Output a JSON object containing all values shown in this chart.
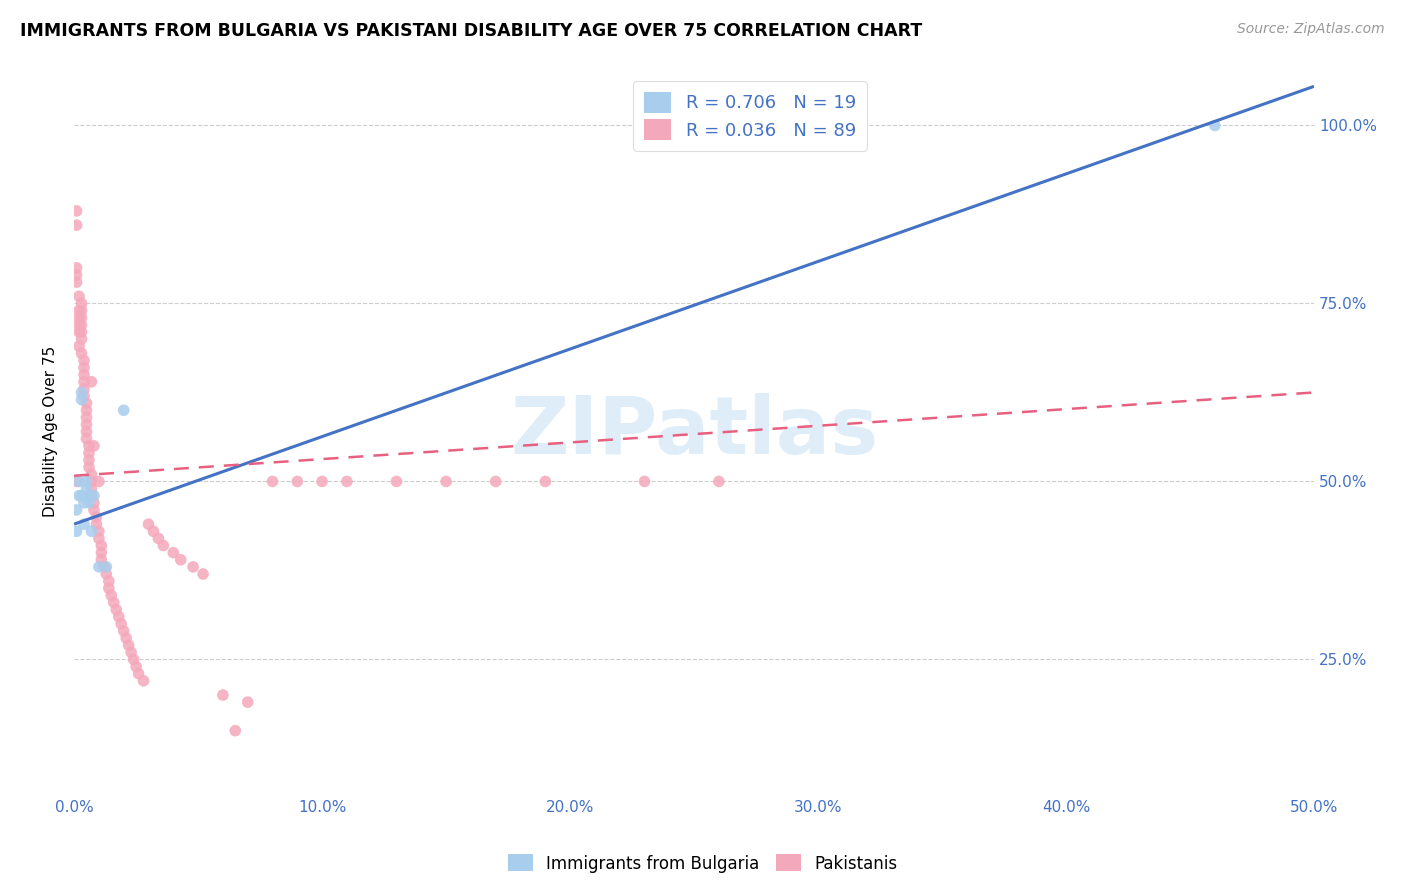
{
  "title": "IMMIGRANTS FROM BULGARIA VS PAKISTANI DISABILITY AGE OVER 75 CORRELATION CHART",
  "source": "Source: ZipAtlas.com",
  "ylabel": "Disability Age Over 75",
  "x_tick_vals": [
    0.0,
    0.1,
    0.2,
    0.3,
    0.4,
    0.5
  ],
  "x_tick_labels": [
    "0.0%",
    "10.0%",
    "20.0%",
    "30.0%",
    "40.0%",
    "50.0%"
  ],
  "y_tick_vals": [
    0.25,
    0.5,
    0.75,
    1.0
  ],
  "y_tick_labels": [
    "25.0%",
    "50.0%",
    "75.0%",
    "100.0%"
  ],
  "xlim": [
    0.0,
    0.5
  ],
  "ylim": [
    0.06,
    1.08
  ],
  "color_bulgaria": "#A8CDED",
  "color_pakistan": "#F4A8BB",
  "color_line_bulgaria": "#4472C4",
  "color_line_pakistan": "#E86080",
  "color_axis_text": "#4472C4",
  "color_grid": "#C8C8C8",
  "bul_line_x": [
    0.0,
    0.5
  ],
  "bul_line_y": [
    0.44,
    1.055
  ],
  "pak_line_x": [
    0.0,
    0.5
  ],
  "pak_line_y": [
    0.508,
    0.625
  ],
  "legend_R1": "R = 0.706",
  "legend_N1": "N = 19",
  "legend_R2": "R = 0.036",
  "legend_N2": "N = 89",
  "legend_label1": "Immigrants from Bulgaria",
  "legend_label2": "Pakistanis",
  "watermark": "ZIPatlas",
  "bul_x": [
    0.001,
    0.001,
    0.002,
    0.002,
    0.003,
    0.003,
    0.003,
    0.004,
    0.004,
    0.005,
    0.005,
    0.006,
    0.006,
    0.007,
    0.008,
    0.01,
    0.013,
    0.02,
    0.46
  ],
  "bul_y": [
    0.46,
    0.43,
    0.5,
    0.48,
    0.625,
    0.615,
    0.48,
    0.47,
    0.44,
    0.5,
    0.49,
    0.48,
    0.47,
    0.43,
    0.48,
    0.38,
    0.38,
    0.6,
    1.0
  ],
  "pak_x": [
    0.001,
    0.001,
    0.001,
    0.001,
    0.001,
    0.001,
    0.002,
    0.002,
    0.002,
    0.002,
    0.002,
    0.002,
    0.003,
    0.003,
    0.003,
    0.003,
    0.003,
    0.003,
    0.003,
    0.004,
    0.004,
    0.004,
    0.004,
    0.004,
    0.004,
    0.005,
    0.005,
    0.005,
    0.005,
    0.005,
    0.005,
    0.006,
    0.006,
    0.006,
    0.006,
    0.007,
    0.007,
    0.007,
    0.007,
    0.007,
    0.008,
    0.008,
    0.008,
    0.009,
    0.009,
    0.01,
    0.01,
    0.01,
    0.011,
    0.011,
    0.011,
    0.012,
    0.013,
    0.014,
    0.014,
    0.015,
    0.016,
    0.017,
    0.018,
    0.019,
    0.02,
    0.021,
    0.022,
    0.023,
    0.024,
    0.025,
    0.026,
    0.028,
    0.03,
    0.032,
    0.034,
    0.036,
    0.04,
    0.043,
    0.048,
    0.052,
    0.06,
    0.065,
    0.07,
    0.08,
    0.09,
    0.1,
    0.11,
    0.13,
    0.15,
    0.17,
    0.19,
    0.23,
    0.26
  ],
  "pak_y": [
    0.86,
    0.79,
    0.5,
    0.8,
    0.78,
    0.88,
    0.76,
    0.74,
    0.73,
    0.72,
    0.71,
    0.69,
    0.75,
    0.74,
    0.73,
    0.72,
    0.71,
    0.7,
    0.68,
    0.67,
    0.66,
    0.65,
    0.64,
    0.63,
    0.62,
    0.61,
    0.6,
    0.59,
    0.58,
    0.57,
    0.56,
    0.55,
    0.54,
    0.53,
    0.52,
    0.51,
    0.64,
    0.5,
    0.49,
    0.48,
    0.47,
    0.55,
    0.46,
    0.45,
    0.44,
    0.5,
    0.43,
    0.42,
    0.41,
    0.4,
    0.39,
    0.38,
    0.37,
    0.36,
    0.35,
    0.34,
    0.33,
    0.32,
    0.31,
    0.3,
    0.29,
    0.28,
    0.27,
    0.26,
    0.25,
    0.24,
    0.23,
    0.22,
    0.44,
    0.43,
    0.42,
    0.41,
    0.4,
    0.39,
    0.38,
    0.37,
    0.2,
    0.15,
    0.19,
    0.5,
    0.5,
    0.5,
    0.5,
    0.5,
    0.5,
    0.5,
    0.5,
    0.5,
    0.5
  ]
}
